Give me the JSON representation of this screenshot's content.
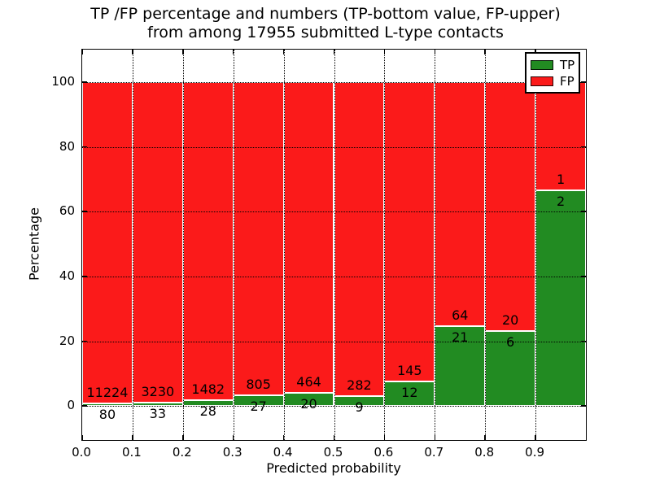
{
  "title": {
    "line1": "TP /FP percentage and numbers (TP-bottom value, FP-upper)",
    "line2": "from among 17955 submitted L-type contacts"
  },
  "chart_data": {
    "type": "bar",
    "subtype": "stacked-percentage-histogram",
    "title": "TP /FP percentage and numbers (TP-bottom value, FP-upper)\nfrom among 17955 submitted L-type contacts",
    "total_submitted_contacts": 17955,
    "xlabel": "Predicted probability",
    "ylabel": "Percentage",
    "xlim": [
      0.0,
      1.0
    ],
    "ylim": [
      -10.5,
      110
    ],
    "bin_width": 0.1,
    "bin_starts": [
      0.0,
      0.1,
      0.2,
      0.3,
      0.4,
      0.5,
      0.6,
      0.7,
      0.8,
      0.9
    ],
    "xtick_values": [
      0.0,
      0.1,
      0.2,
      0.3,
      0.4,
      0.5,
      0.6,
      0.7,
      0.8,
      0.9
    ],
    "xtick_labels": [
      "0.0",
      "0.1",
      "0.2",
      "0.3",
      "0.4",
      "0.5",
      "0.6",
      "0.7",
      "0.8",
      "0.9"
    ],
    "ytick_values": [
      0,
      20,
      40,
      60,
      80,
      100
    ],
    "ytick_labels": [
      "0",
      "20",
      "40",
      "60",
      "80",
      "100"
    ],
    "grid": true,
    "grid_style": "dotted",
    "series": [
      {
        "name": "TP",
        "color": "#228b22",
        "counts": [
          80,
          33,
          28,
          27,
          20,
          9,
          12,
          21,
          6,
          2
        ]
      },
      {
        "name": "FP",
        "color": "#fb1a1a",
        "counts": [
          11224,
          3230,
          1482,
          805,
          464,
          282,
          145,
          64,
          20,
          1
        ]
      }
    ],
    "tp_percent_of_bin": [
      0.71,
      1.01,
      1.85,
      3.25,
      4.13,
      3.09,
      7.64,
      24.71,
      23.08,
      66.67
    ],
    "bars_stack_to_percent": 100,
    "legend": {
      "position": "upper right",
      "entries": [
        {
          "label": "TP",
          "color": "#228b22"
        },
        {
          "label": "FP",
          "color": "#fb1a1a"
        }
      ]
    }
  },
  "colors": {
    "tp_green": "#228b22",
    "fp_red": "#fb1a1a",
    "background": "#ffffff",
    "axis": "#000000"
  }
}
